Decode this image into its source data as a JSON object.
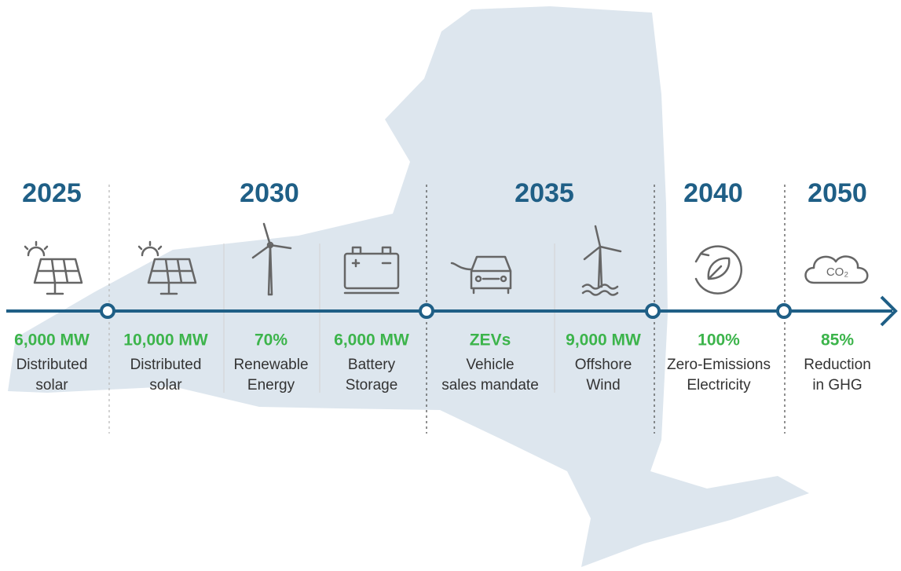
{
  "years": [
    "2025",
    "2030",
    "2035",
    "2040",
    "2050"
  ],
  "targets": [
    {
      "value": "6,000 MW",
      "label": [
        "Distributed",
        "solar"
      ]
    },
    {
      "value": "10,000 MW",
      "label": [
        "Distributed",
        "solar"
      ]
    },
    {
      "value": "70%",
      "label": [
        "Renewable",
        "Energy"
      ]
    },
    {
      "value": "6,000 MW",
      "label": [
        "Battery",
        "Storage"
      ]
    },
    {
      "value": "ZEVs",
      "label": [
        "Vehicle",
        "sales mandate"
      ]
    },
    {
      "value": "9,000 MW",
      "label": [
        "Offshore",
        "Wind"
      ]
    },
    {
      "value": "100%",
      "label": [
        "Zero-Emissions",
        "Electricity"
      ]
    },
    {
      "value": "85%",
      "label": [
        "Reduction",
        "in GHG"
      ]
    }
  ],
  "co2_icon": "CO₂"
}
